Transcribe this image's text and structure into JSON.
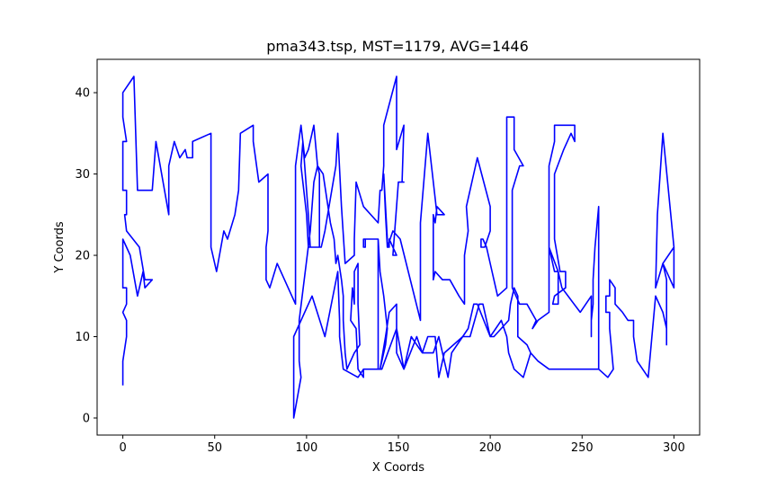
{
  "chart_data": {
    "type": "line",
    "title": "pma343.tsp, MST=1179, AVG=1446",
    "xlabel": "X Coords",
    "ylabel": "Y Coords",
    "xlim": [
      -14,
      314
    ],
    "ylim": [
      -2.1,
      44.1
    ],
    "xticks": [
      0,
      50,
      100,
      150,
      200,
      250,
      300
    ],
    "yticks": [
      0,
      10,
      20,
      30,
      40
    ],
    "grid": false,
    "legend": "none",
    "series": [
      {
        "color": "#0000ff",
        "points": [
          [
            0,
            4
          ],
          [
            0,
            7
          ],
          [
            2,
            10
          ],
          [
            2,
            12
          ],
          [
            0,
            13
          ],
          [
            2,
            14
          ],
          [
            2,
            16
          ],
          [
            0,
            16
          ],
          [
            0,
            22
          ],
          [
            2,
            21
          ],
          [
            4,
            20
          ],
          [
            8,
            15
          ],
          [
            11,
            18
          ],
          [
            12,
            16
          ],
          [
            16,
            17
          ],
          [
            14,
            17
          ],
          [
            12,
            17
          ],
          [
            9,
            21
          ],
          [
            2,
            23
          ],
          [
            1,
            25
          ],
          [
            2,
            25
          ],
          [
            2,
            28
          ],
          [
            0,
            28
          ],
          [
            0,
            34
          ],
          [
            2,
            34
          ],
          [
            0,
            37
          ],
          [
            0,
            40
          ],
          [
            6,
            42
          ],
          [
            8,
            28
          ],
          [
            16,
            28
          ],
          [
            18,
            34
          ],
          [
            25,
            25
          ],
          [
            25,
            31
          ],
          [
            28,
            34
          ],
          [
            31,
            32
          ],
          [
            34,
            33
          ],
          [
            35,
            32
          ],
          [
            38,
            32
          ],
          [
            38,
            34
          ],
          [
            48,
            35
          ],
          [
            48,
            21
          ],
          [
            51,
            18
          ],
          [
            55,
            23
          ],
          [
            57,
            22
          ],
          [
            61,
            25
          ],
          [
            63,
            28
          ],
          [
            64,
            35
          ],
          [
            71,
            36
          ],
          [
            71,
            34
          ],
          [
            74,
            29
          ],
          [
            79,
            30
          ],
          [
            79,
            23
          ],
          [
            78,
            21
          ],
          [
            78,
            17
          ],
          [
            80,
            16
          ],
          [
            84,
            19
          ],
          [
            94,
            14
          ],
          [
            94,
            31
          ],
          [
            97,
            36
          ],
          [
            99,
            32
          ],
          [
            101,
            33
          ],
          [
            104,
            36
          ],
          [
            106,
            31
          ],
          [
            107,
            30
          ],
          [
            107,
            21
          ],
          [
            102,
            21
          ],
          [
            101,
            25
          ],
          [
            98,
            34
          ],
          [
            97,
            31
          ],
          [
            100,
            25
          ],
          [
            101,
            21
          ],
          [
            108,
            21
          ],
          [
            110,
            23
          ],
          [
            116,
            31
          ],
          [
            117,
            35
          ],
          [
            119,
            26
          ],
          [
            121,
            19
          ],
          [
            126,
            20
          ],
          [
            126,
            22
          ],
          [
            127,
            29
          ],
          [
            131,
            26
          ],
          [
            139,
            24
          ],
          [
            140,
            28
          ],
          [
            141,
            28
          ],
          [
            142,
            31
          ],
          [
            142,
            36
          ],
          [
            149,
            42
          ],
          [
            149,
            33
          ],
          [
            153,
            36
          ],
          [
            152,
            29
          ],
          [
            153,
            29
          ],
          [
            150,
            29
          ],
          [
            147,
            20
          ],
          [
            149,
            20
          ],
          [
            145,
            22
          ],
          [
            145,
            21
          ],
          [
            144,
            21
          ],
          [
            144,
            22
          ],
          [
            142,
            30
          ],
          [
            143,
            25
          ],
          [
            144,
            21
          ],
          [
            147,
            23
          ],
          [
            151,
            22
          ],
          [
            162,
            12
          ],
          [
            162,
            24
          ],
          [
            166,
            35
          ],
          [
            170,
            27
          ],
          [
            171,
            25
          ],
          [
            173,
            25
          ],
          [
            175,
            25
          ],
          [
            171,
            26
          ],
          [
            170,
            24
          ],
          [
            169,
            25
          ],
          [
            169,
            17
          ],
          [
            170,
            18
          ],
          [
            174,
            17
          ],
          [
            178,
            17
          ],
          [
            183,
            15
          ],
          [
            186,
            14
          ],
          [
            186,
            20
          ],
          [
            188,
            23
          ],
          [
            187,
            26
          ],
          [
            193,
            32
          ],
          [
            200,
            26
          ],
          [
            200,
            23
          ],
          [
            197,
            21
          ],
          [
            195,
            21
          ],
          [
            195,
            22
          ],
          [
            196,
            22
          ],
          [
            198,
            21
          ],
          [
            204,
            15
          ],
          [
            209,
            16
          ],
          [
            209,
            37
          ],
          [
            213,
            37
          ],
          [
            213,
            33
          ],
          [
            218,
            31
          ],
          [
            216,
            31
          ],
          [
            212,
            28
          ],
          [
            212,
            16
          ],
          [
            216,
            14
          ],
          [
            220,
            14
          ],
          [
            225,
            12
          ],
          [
            223,
            11
          ],
          [
            226,
            12
          ],
          [
            232,
            13
          ],
          [
            232,
            21
          ],
          [
            235,
            18
          ],
          [
            237,
            18
          ],
          [
            237,
            14
          ],
          [
            234,
            14
          ],
          [
            235,
            15
          ],
          [
            241,
            16
          ],
          [
            241,
            18
          ],
          [
            240,
            18
          ],
          [
            239,
            18
          ],
          [
            238,
            18
          ],
          [
            235,
            22
          ],
          [
            235,
            30
          ],
          [
            240,
            33
          ],
          [
            244,
            35
          ],
          [
            246,
            34
          ],
          [
            246,
            36
          ],
          [
            245,
            36
          ],
          [
            238,
            36
          ],
          [
            237,
            36
          ],
          [
            235,
            36
          ],
          [
            235,
            34
          ],
          [
            232,
            31
          ],
          [
            232,
            25
          ],
          [
            232,
            21
          ],
          [
            237,
            18
          ],
          [
            239,
            16
          ],
          [
            249,
            13
          ],
          [
            255,
            15
          ],
          [
            255,
            10
          ],
          [
            255,
            12
          ],
          [
            256,
            14
          ],
          [
            256,
            17
          ],
          [
            257,
            21
          ],
          [
            259,
            26
          ],
          [
            259,
            6
          ],
          [
            238,
            6
          ],
          [
            237,
            6
          ],
          [
            232,
            6
          ],
          [
            226,
            7
          ],
          [
            222,
            8
          ],
          [
            220,
            9
          ],
          [
            215,
            10
          ],
          [
            215,
            15
          ],
          [
            213,
            16
          ],
          [
            211,
            14
          ],
          [
            210,
            12
          ],
          [
            202,
            10
          ],
          [
            200,
            10
          ],
          [
            196,
            14
          ],
          [
            194,
            14
          ],
          [
            189,
            10
          ],
          [
            185,
            10
          ],
          [
            179,
            8
          ],
          [
            177,
            5
          ],
          [
            173,
            9
          ],
          [
            172,
            10
          ],
          [
            169,
            8
          ],
          [
            163,
            8
          ],
          [
            160,
            9
          ],
          [
            157,
            10
          ],
          [
            153,
            6
          ],
          [
            149,
            8
          ],
          [
            149,
            14
          ],
          [
            145,
            13
          ],
          [
            143,
            10
          ],
          [
            140,
            6
          ],
          [
            143,
            9
          ],
          [
            144,
            11
          ],
          [
            142,
            15
          ],
          [
            140,
            18
          ],
          [
            139,
            22
          ],
          [
            132,
            22
          ],
          [
            131,
            22
          ],
          [
            131,
            21
          ],
          [
            132,
            21
          ],
          [
            132,
            22
          ],
          [
            139,
            22
          ],
          [
            139,
            6
          ],
          [
            140,
            6
          ],
          [
            131,
            6
          ],
          [
            131,
            5
          ],
          [
            128,
            6
          ],
          [
            127,
            11
          ],
          [
            124,
            12
          ],
          [
            125,
            16
          ],
          [
            126,
            14
          ],
          [
            126,
            18
          ],
          [
            128,
            19
          ],
          [
            128,
            14
          ],
          [
            129,
            9
          ],
          [
            126,
            8
          ],
          [
            122,
            6
          ],
          [
            121,
            8
          ],
          [
            120,
            12
          ],
          [
            120,
            15
          ],
          [
            119,
            17
          ],
          [
            117,
            20
          ],
          [
            116,
            19
          ],
          [
            115,
            22
          ],
          [
            113,
            24
          ],
          [
            109,
            30
          ],
          [
            106,
            31
          ],
          [
            104,
            29
          ],
          [
            102,
            23
          ],
          [
            96,
            12
          ],
          [
            96,
            9
          ],
          [
            96,
            8
          ],
          [
            96,
            7
          ],
          [
            97,
            5
          ],
          [
            93,
            0
          ],
          [
            93,
            10
          ],
          [
            103,
            15
          ],
          [
            110,
            10
          ],
          [
            117,
            18
          ],
          [
            118,
            12
          ],
          [
            118,
            10
          ],
          [
            120,
            6
          ],
          [
            128,
            5
          ],
          [
            131,
            6
          ],
          [
            141,
            6
          ],
          [
            149,
            11
          ],
          [
            153,
            6
          ],
          [
            160,
            10
          ],
          [
            163,
            8
          ],
          [
            166,
            10
          ],
          [
            170,
            10
          ],
          [
            172,
            5
          ],
          [
            175,
            8
          ],
          [
            185,
            10
          ],
          [
            188,
            11
          ],
          [
            191,
            14
          ],
          [
            193,
            14
          ],
          [
            200,
            10
          ],
          [
            203,
            11
          ],
          [
            206,
            12
          ],
          [
            209,
            10
          ],
          [
            210,
            8
          ],
          [
            213,
            6
          ],
          [
            218,
            5
          ],
          [
            222,
            8
          ],
          [
            226,
            7
          ],
          [
            232,
            6
          ],
          [
            238,
            6
          ],
          [
            256,
            6
          ],
          [
            259,
            6
          ],
          [
            264,
            5
          ],
          [
            267,
            6
          ],
          [
            265,
            11
          ],
          [
            265,
            13
          ],
          [
            263,
            13
          ],
          [
            263,
            15
          ],
          [
            265,
            15
          ],
          [
            265,
            17
          ],
          [
            268,
            16
          ],
          [
            268,
            14
          ],
          [
            272,
            13
          ],
          [
            275,
            12
          ],
          [
            278,
            12
          ],
          [
            278,
            10
          ],
          [
            280,
            7
          ],
          [
            286,
            5
          ],
          [
            290,
            15
          ],
          [
            294,
            13
          ],
          [
            296,
            11
          ],
          [
            296,
            9
          ],
          [
            296,
            17
          ],
          [
            294,
            19
          ],
          [
            300,
            21
          ],
          [
            300,
            18
          ],
          [
            300,
            16
          ],
          [
            294,
            19
          ],
          [
            290,
            16
          ],
          [
            291,
            25
          ],
          [
            294,
            35
          ],
          [
            300,
            21
          ],
          [
            300,
            16
          ]
        ]
      }
    ]
  }
}
